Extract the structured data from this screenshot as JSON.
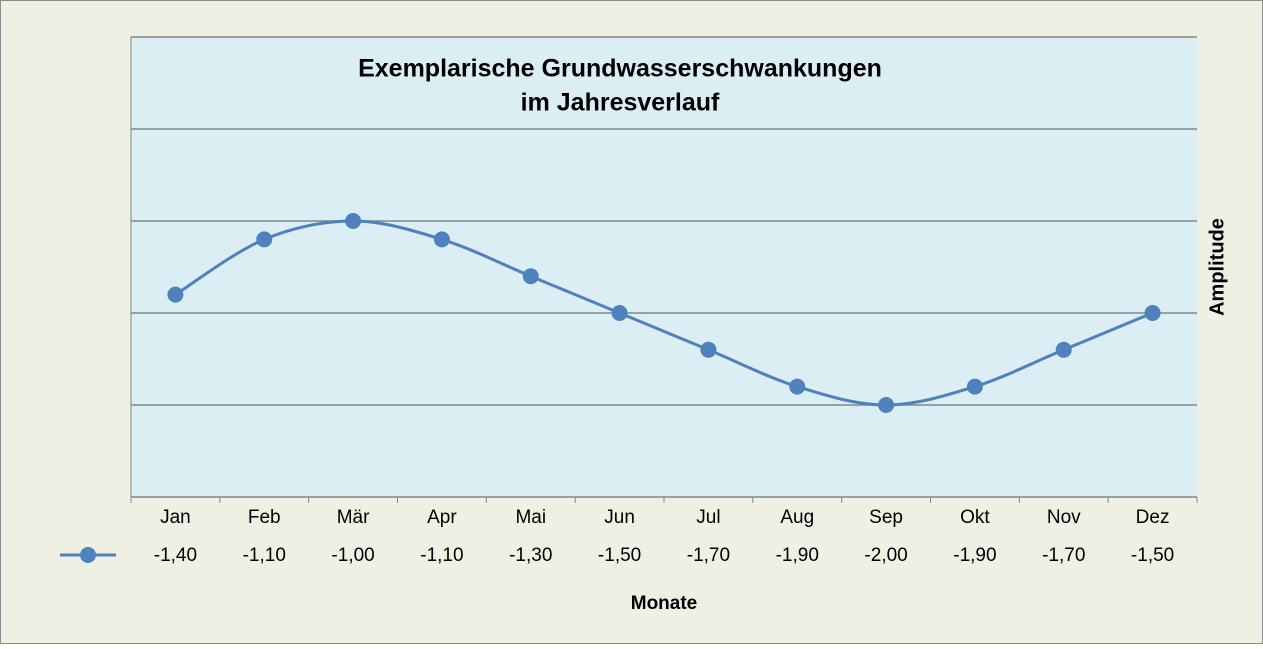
{
  "chart_data": {
    "type": "line",
    "title": [
      "Exemplarische Grundwasserschwankungen",
      "im Jahresverlauf"
    ],
    "x_label": "Monate",
    "y_label": "Amplitude",
    "categories": [
      "Jan",
      "Feb",
      "Mär",
      "Apr",
      "Mai",
      "Jun",
      "Jul",
      "Aug",
      "Sep",
      "Okt",
      "Nov",
      "Dez"
    ],
    "values": [
      -1.4,
      -1.1,
      -1.0,
      -1.1,
      -1.3,
      -1.5,
      -1.7,
      -1.9,
      -2.0,
      -1.9,
      -1.7,
      -1.5
    ],
    "value_labels": [
      "-1,40",
      "-1,10",
      "-1,00",
      "-1,10",
      "-1,30",
      "-1,50",
      "-1,70",
      "-1,90",
      "-2,00",
      "-1,90",
      "-1,70",
      "-1,50"
    ],
    "color": "#4f81bd",
    "ylim": [
      -2.5,
      0
    ],
    "yticks": [
      -2.5,
      -2,
      -1.5,
      -1,
      -0.5,
      0
    ],
    "grid": true
  }
}
